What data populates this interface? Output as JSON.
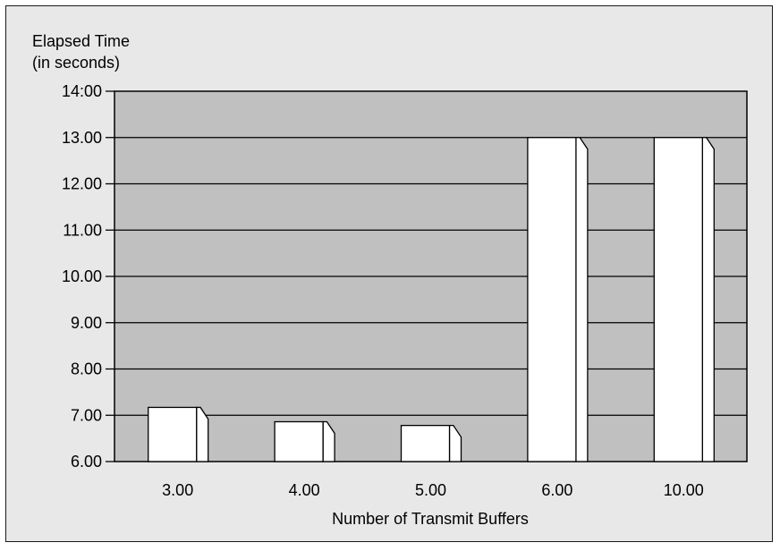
{
  "chart_data": {
    "type": "bar",
    "ylabel_line1": "Elapsed Time",
    "ylabel_line2": "(in seconds)",
    "xlabel": "Number of Transmit Buffers",
    "categories": [
      "3.00",
      "4.00",
      "5.00",
      "6.00",
      "10.00"
    ],
    "values": [
      7.17,
      6.86,
      6.78,
      13.0,
      13.0
    ],
    "ylim": [
      6,
      14
    ],
    "yticks": [
      "6.00",
      "7.00",
      "8.00",
      "9.00",
      "10.00",
      "11.00",
      "12.00",
      "13.00",
      "14:00"
    ],
    "grid": true,
    "plot_background": "#c0c0c0",
    "bar_color": "#ffffff",
    "frame_background": "#e8e8e8"
  }
}
